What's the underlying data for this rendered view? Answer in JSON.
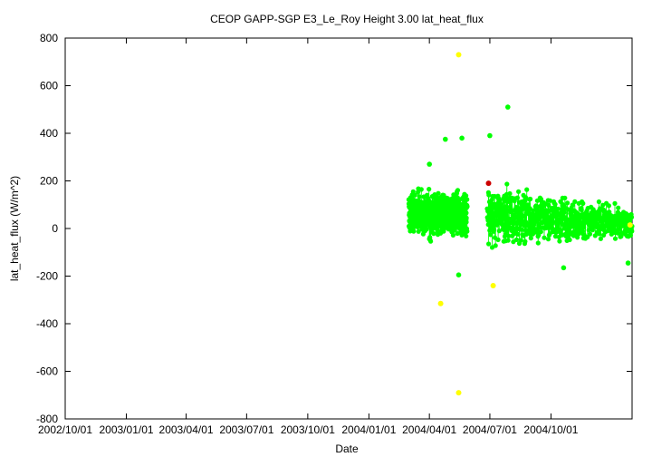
{
  "chart_data": {
    "type": "scatter",
    "title": "CEOP GAPP-SGP E3_Le_Roy Height 3.00 lat_heat_flux",
    "xlabel": "Date",
    "ylabel": "lat_heat_flux (W/m^2)",
    "ylim": [
      -800,
      800
    ],
    "xlim": [
      "2002/10/01",
      "2005/01/31"
    ],
    "y_ticks": [
      -800,
      -600,
      -400,
      -200,
      0,
      200,
      400,
      600,
      800
    ],
    "x_ticks": [
      "2002/10/01",
      "2003/01/01",
      "2003/04/01",
      "2003/07/01",
      "2003/10/01",
      "2004/01/01",
      "2004/04/01",
      "2004/07/01",
      "2004/10/01"
    ],
    "grid": false,
    "colors": {
      "main": "#00ff00",
      "flag_yellow": "#ffff00",
      "flag_red": "#cc0000"
    },
    "series_segments": [
      {
        "start": "2004/03/01",
        "end": "2004/05/28",
        "color": "main",
        "low": -110,
        "high": 380,
        "spikes": [
          [
            "2004/04/01",
            270
          ],
          [
            "2004/04/25",
            375
          ],
          [
            "2004/05/20",
            380
          ],
          [
            "2004/05/15",
            -195
          ]
        ]
      },
      {
        "start": "2004/06/27",
        "end": "2005/01/31",
        "color": "main",
        "low": -165,
        "high": 390,
        "spikes": [
          [
            "2004/07/28",
            510
          ],
          [
            "2004/07/01",
            390
          ],
          [
            "2004/10/20",
            -165
          ],
          [
            "2005/01/25",
            -145
          ]
        ]
      }
    ],
    "flagged_points": [
      {
        "x": "2004/05/15",
        "y": 730,
        "color": "flag_yellow"
      },
      {
        "x": "2004/04/18",
        "y": -315,
        "color": "flag_yellow"
      },
      {
        "x": "2004/05/15",
        "y": -690,
        "color": "flag_yellow"
      },
      {
        "x": "2004/07/06",
        "y": -240,
        "color": "flag_yellow"
      },
      {
        "x": "2005/01/28",
        "y": 15,
        "color": "flag_yellow"
      },
      {
        "x": "2004/06/29",
        "y": 190,
        "color": "flag_red"
      }
    ]
  }
}
